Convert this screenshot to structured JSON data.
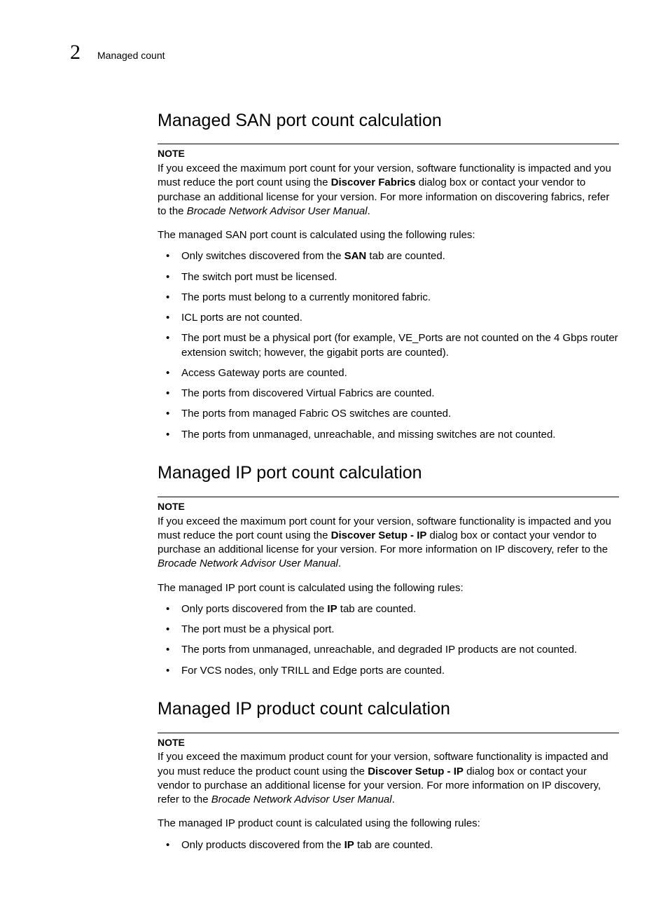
{
  "header": {
    "chapter_number": "2",
    "title": "Managed count"
  },
  "sections": [
    {
      "heading": "Managed SAN port count calculation",
      "note_label": "NOTE",
      "note_parts": [
        {
          "t": "If you exceed the maximum port count for your version, software functionality is impacted and you must reduce the port count using the "
        },
        {
          "t": "Discover Fabrics",
          "bold": true
        },
        {
          "t": " dialog box or contact your vendor to purchase an additional license for your version. For more information on discovering fabrics, refer to the "
        },
        {
          "t": "Brocade Network Advisor User Manual",
          "italic": true
        },
        {
          "t": "."
        }
      ],
      "lead": "The managed SAN port count is calculated using the following rules:",
      "rules": [
        [
          {
            "t": "Only switches discovered from the "
          },
          {
            "t": "SAN",
            "bold": true
          },
          {
            "t": " tab are counted."
          }
        ],
        [
          {
            "t": "The switch port must be licensed."
          }
        ],
        [
          {
            "t": "The ports must belong to a currently monitored fabric."
          }
        ],
        [
          {
            "t": "ICL ports are not counted."
          }
        ],
        [
          {
            "t": "The port must be a physical port (for example, VE_Ports are not counted on the 4 Gbps router extension switch; however, the gigabit ports are counted)."
          }
        ],
        [
          {
            "t": "Access Gateway ports are counted."
          }
        ],
        [
          {
            "t": "The ports from discovered Virtual Fabrics are counted."
          }
        ],
        [
          {
            "t": "The ports from managed Fabric OS switches are counted."
          }
        ],
        [
          {
            "t": "The ports from unmanaged, unreachable, and missing switches are not counted."
          }
        ]
      ]
    },
    {
      "heading": "Managed IP port count calculation",
      "note_label": "NOTE",
      "note_parts": [
        {
          "t": "If you exceed the maximum port count for your version, software functionality is impacted and you must reduce the port count using the "
        },
        {
          "t": "Discover Setup - IP",
          "bold": true
        },
        {
          "t": " dialog box or contact your vendor to purchase an additional license for your version. For more information on IP discovery, refer to the "
        },
        {
          "t": "Brocade Network Advisor User Manual",
          "italic": true
        },
        {
          "t": "."
        }
      ],
      "lead": "The managed IP port count is calculated using the following rules:",
      "rules": [
        [
          {
            "t": "Only ports discovered from the "
          },
          {
            "t": "IP",
            "bold": true
          },
          {
            "t": " tab are counted."
          }
        ],
        [
          {
            "t": "The port must be a physical port."
          }
        ],
        [
          {
            "t": "The ports from unmanaged, unreachable, and degraded IP products are not counted."
          }
        ],
        [
          {
            "t": "For VCS nodes, only TRILL and Edge ports are counted."
          }
        ]
      ]
    },
    {
      "heading": "Managed IP product count calculation",
      "note_label": "NOTE",
      "note_parts": [
        {
          "t": "If you exceed the maximum product count for your version, software functionality is impacted and you must reduce the product count using the "
        },
        {
          "t": "Discover Setup - IP",
          "bold": true
        },
        {
          "t": " dialog box or contact your vendor to purchase an additional license for your version. For more information on IP discovery, refer to the "
        },
        {
          "t": "Brocade Network Advisor User Manual",
          "italic": true
        },
        {
          "t": "."
        }
      ],
      "lead": "The managed IP product count is calculated using the following rules:",
      "rules": [
        [
          {
            "t": "Only products discovered from the "
          },
          {
            "t": "IP",
            "bold": true
          },
          {
            "t": " tab are counted."
          }
        ]
      ]
    }
  ]
}
